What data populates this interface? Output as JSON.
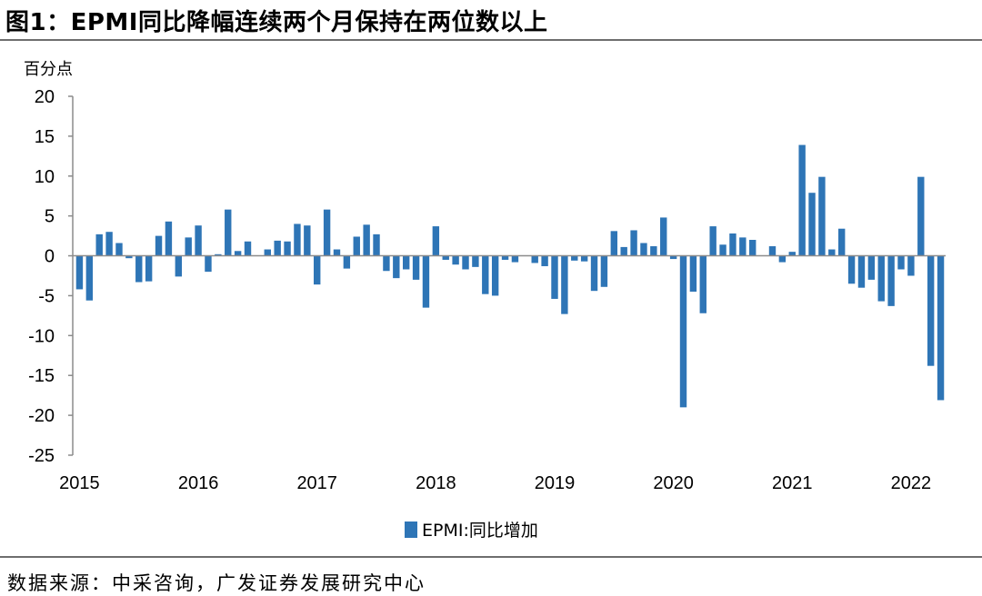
{
  "chart_data": {
    "type": "bar",
    "title": "图1：EPMI同比降幅连续两个月保持在两位数以上",
    "ylabel": "百分点",
    "ylim": [
      -25,
      20
    ],
    "yticks": [
      20,
      15,
      10,
      5,
      0,
      -5,
      -10,
      -15,
      -20,
      -25
    ],
    "x_labels": [
      "2015",
      "2016",
      "2017",
      "2018",
      "2019",
      "2020",
      "2021",
      "2022"
    ],
    "color": "#2E75B6",
    "series": [
      {
        "name": "EPMI:同比增加",
        "values": [
          -4.2,
          -5.6,
          2.7,
          3.0,
          1.6,
          -0.3,
          -3.3,
          -3.2,
          2.5,
          4.3,
          -2.6,
          2.3,
          3.8,
          -2.0,
          0.2,
          5.8,
          0.6,
          1.8,
          0,
          0.8,
          1.9,
          1.8,
          4.0,
          3.8,
          -3.6,
          5.8,
          0.8,
          -1.6,
          2.4,
          3.9,
          2.7,
          -1.9,
          -2.8,
          -1.7,
          -3.0,
          -6.5,
          3.7,
          -0.5,
          -1.1,
          -1.7,
          -1.4,
          -4.8,
          -5.0,
          -0.5,
          -0.8,
          0,
          -0.9,
          -1.3,
          -5.4,
          -7.3,
          -0.6,
          -0.7,
          -4.4,
          -3.9,
          3.1,
          1.1,
          3.2,
          1.6,
          1.2,
          4.8,
          -0.4,
          -19.0,
          -4.5,
          -7.2,
          3.7,
          1.4,
          2.8,
          2.3,
          2.0,
          0,
          1.2,
          -0.8,
          0.5,
          13.9,
          7.9,
          9.9,
          0.8,
          3.4,
          -3.5,
          -4.0,
          -3.0,
          -5.7,
          -6.3,
          -1.7,
          -2.5,
          9.9,
          -13.8,
          -18.1
        ]
      }
    ],
    "legend": "bottom-center"
  },
  "title": "图1：EPMI同比降幅连续两个月保持在两位数以上",
  "unit_label": "百分点",
  "source": "数据来源：中采咨询，广发证券发展研究中心"
}
